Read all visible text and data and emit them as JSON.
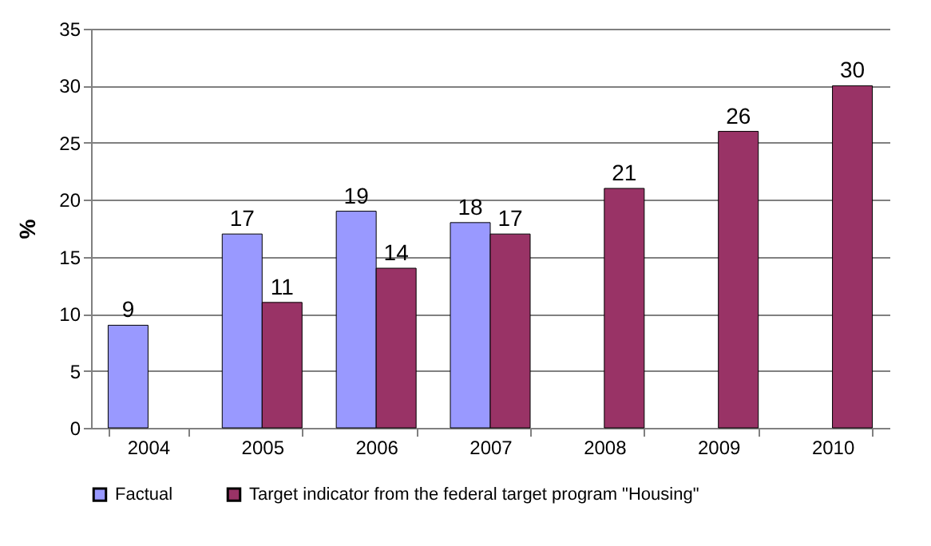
{
  "chart_data": {
    "type": "bar",
    "ylabel": "%",
    "categories": [
      "2004",
      "2005",
      "2006",
      "2007",
      "2008",
      "2009",
      "2010"
    ],
    "series": [
      {
        "name": "Factual",
        "color": "#9999ff",
        "values": [
          9,
          17,
          19,
          18,
          null,
          null,
          null
        ]
      },
      {
        "name": "Target indicator from the federal target program \"Housing\"",
        "color": "#993366",
        "values": [
          null,
          11,
          14,
          17,
          21,
          26,
          30
        ]
      }
    ],
    "ylim": [
      0,
      35
    ],
    "yticks": [
      0,
      5,
      10,
      15,
      20,
      25,
      30,
      35
    ],
    "grid": "y",
    "legend": "bottom",
    "data_labels": true
  }
}
